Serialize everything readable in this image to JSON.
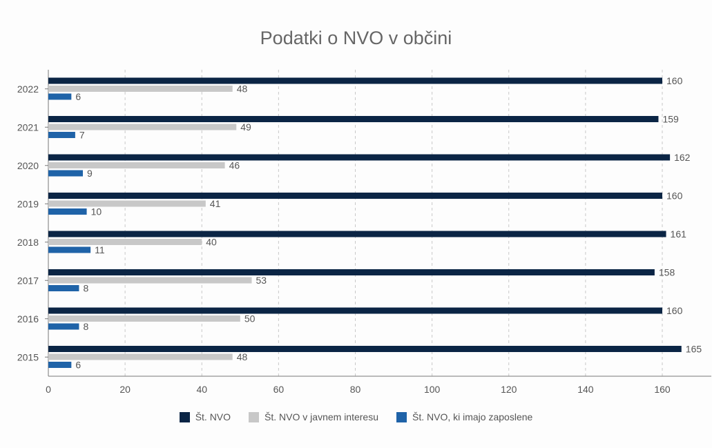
{
  "colors": {
    "series_1": "#0b2545",
    "series_2": "#c8c8c8",
    "series_3": "#1f63a8",
    "grid": "#c8c8c8",
    "axis": "#777777",
    "text": "#555555"
  },
  "chart_data": {
    "type": "bar",
    "orientation": "horizontal",
    "title": "Podatki o NVO v občini",
    "xlabel": "",
    "ylabel": "",
    "xlim": [
      0,
      170
    ],
    "xticks": [
      0,
      20,
      40,
      60,
      80,
      100,
      120,
      140,
      160
    ],
    "grid": "vertical dashed",
    "legend_position": "bottom",
    "categories": [
      "2022",
      "2021",
      "2020",
      "2019",
      "2018",
      "2017",
      "2016",
      "2015"
    ],
    "series": [
      {
        "name": "Št. NVO",
        "color": "#0b2545",
        "values": [
          160,
          159,
          162,
          160,
          161,
          158,
          160,
          165
        ]
      },
      {
        "name": "Št. NVO v javnem interesu",
        "color": "#c8c8c8",
        "values": [
          48,
          49,
          46,
          41,
          40,
          53,
          50,
          48
        ]
      },
      {
        "name": "Št. NVO, ki imajo zaposlene",
        "color": "#1f63a8",
        "values": [
          6,
          7,
          9,
          10,
          11,
          8,
          8,
          6
        ]
      }
    ]
  }
}
